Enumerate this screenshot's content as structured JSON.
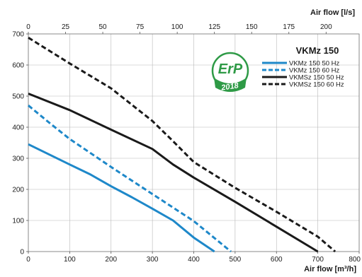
{
  "chart_data": {
    "type": "line",
    "title": "VKMz 150",
    "xlabel": "Air flow [m³/h]",
    "ylabel": "",
    "x2label": "Air flow [l/s]",
    "xlim": [
      0,
      800
    ],
    "ylim": [
      0,
      700
    ],
    "x2lim": [
      0,
      222.22
    ],
    "xticks": [
      "0",
      "100",
      "200",
      "300",
      "400",
      "500",
      "600",
      "700",
      "800"
    ],
    "yticks": [
      "0",
      "100",
      "200",
      "300",
      "400",
      "500",
      "600",
      "700"
    ],
    "x2ticks": [
      "0",
      "25",
      "50",
      "75",
      "100",
      "125",
      "150",
      "175",
      "200"
    ],
    "grid": true,
    "legend_position": "top-right",
    "badge": {
      "text": "ErP",
      "year": "2018",
      "color": "#2e9a46"
    },
    "series": [
      {
        "name": "VKMz 150 50 Hz",
        "color": "#1e88c9",
        "style": "solid",
        "x": [
          0,
          100,
          150,
          200,
          250,
          300,
          350,
          400,
          450
        ],
        "y": [
          345,
          280,
          248,
          210,
          175,
          138,
          100,
          45,
          0
        ]
      },
      {
        "name": "VKMz 150 60 Hz",
        "color": "#1e88c9",
        "style": "dashed",
        "x": [
          0,
          50,
          100,
          200,
          300,
          400,
          490
        ],
        "y": [
          470,
          415,
          362,
          272,
          185,
          98,
          0
        ]
      },
      {
        "name": "VKMSz 150 50 Hz",
        "color": "#1a1a1a",
        "style": "solid",
        "x": [
          0,
          100,
          200,
          300,
          350,
          400,
          500,
          600,
          700
        ],
        "y": [
          508,
          455,
          392,
          330,
          280,
          238,
          160,
          80,
          0
        ]
      },
      {
        "name": "VKMSz 150 60 Hz",
        "color": "#1a1a1a",
        "style": "dashed",
        "x": [
          0,
          100,
          200,
          300,
          350,
          400,
          500,
          600,
          700,
          742
        ],
        "y": [
          688,
          605,
          525,
          420,
          355,
          288,
          205,
          128,
          48,
          0
        ]
      }
    ]
  }
}
